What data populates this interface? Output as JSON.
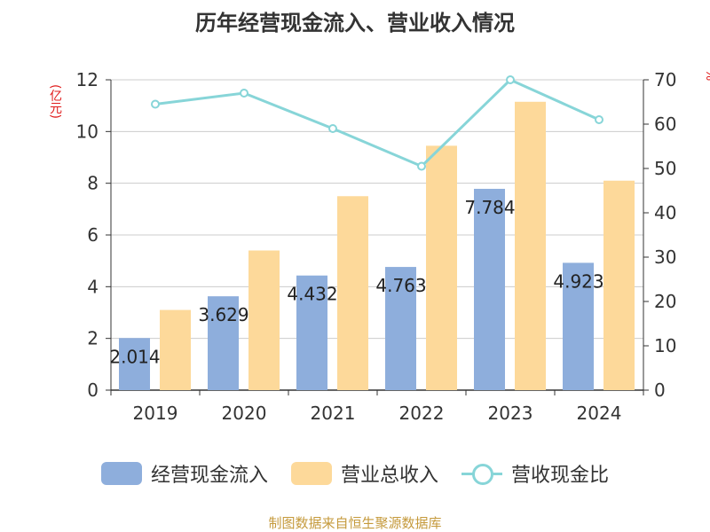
{
  "title": "历年经营现金流入、营业收入情况",
  "source": "制图数据来自恒生聚源数据库",
  "chart_data": {
    "type": "bar",
    "title": "历年经营现金流入、营业收入情况",
    "categories": [
      "2019",
      "2020",
      "2021",
      "2022",
      "2023",
      "2024"
    ],
    "ylabel": "(亿元)",
    "ylabel_right": "%",
    "ylim": [
      0,
      12
    ],
    "yticks": [
      0,
      2,
      4,
      6,
      8,
      10,
      12
    ],
    "y2lim": [
      0,
      70
    ],
    "y2ticks": [
      0,
      10,
      20,
      30,
      40,
      50,
      60,
      70
    ],
    "grid": true,
    "legend_position": "bottom",
    "series": [
      {
        "name": "经营现金流入",
        "type": "bar",
        "axis": "left",
        "color": "#8eaedc",
        "values": [
          2.014,
          3.629,
          4.432,
          4.763,
          7.784,
          4.923
        ],
        "labels": [
          "2.014",
          "3.629",
          "4.432",
          "4.763",
          "7.784",
          "4.923"
        ]
      },
      {
        "name": "营业总收入",
        "type": "bar",
        "axis": "left",
        "color": "#fdd99a",
        "values": [
          3.1,
          5.4,
          7.5,
          9.45,
          11.15,
          8.1
        ]
      },
      {
        "name": "营收现金比",
        "type": "line",
        "axis": "right",
        "color": "#87d5d8",
        "values": [
          64.5,
          67.0,
          59.0,
          50.5,
          70.0,
          61.0
        ]
      }
    ]
  }
}
